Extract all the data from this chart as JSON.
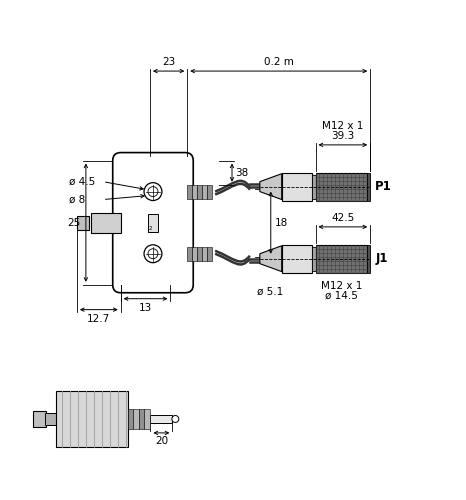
{
  "bg_color": "#ffffff",
  "line_color": "#000000",
  "figsize": [
    4.66,
    5.0
  ],
  "dpi": 100,
  "annotations": {
    "dim_23": "23",
    "dim_02m": "0.2 m",
    "dim_45": "ø 4.5",
    "dim_8": "ø 8",
    "dim_38": "38",
    "dim_25": "25",
    "dim_127": "12.7",
    "dim_13": "13",
    "dim_18": "18",
    "dim_51": "ø 5.1",
    "dim_393": "39.3",
    "dim_m12x1_top": "M12 x 1",
    "dim_p1": "P1",
    "dim_425": "42.5",
    "dim_j1": "J1",
    "dim_m12x1_bot": "M12 x 1",
    "dim_145": "ø 14.5",
    "dim_20": "20"
  }
}
